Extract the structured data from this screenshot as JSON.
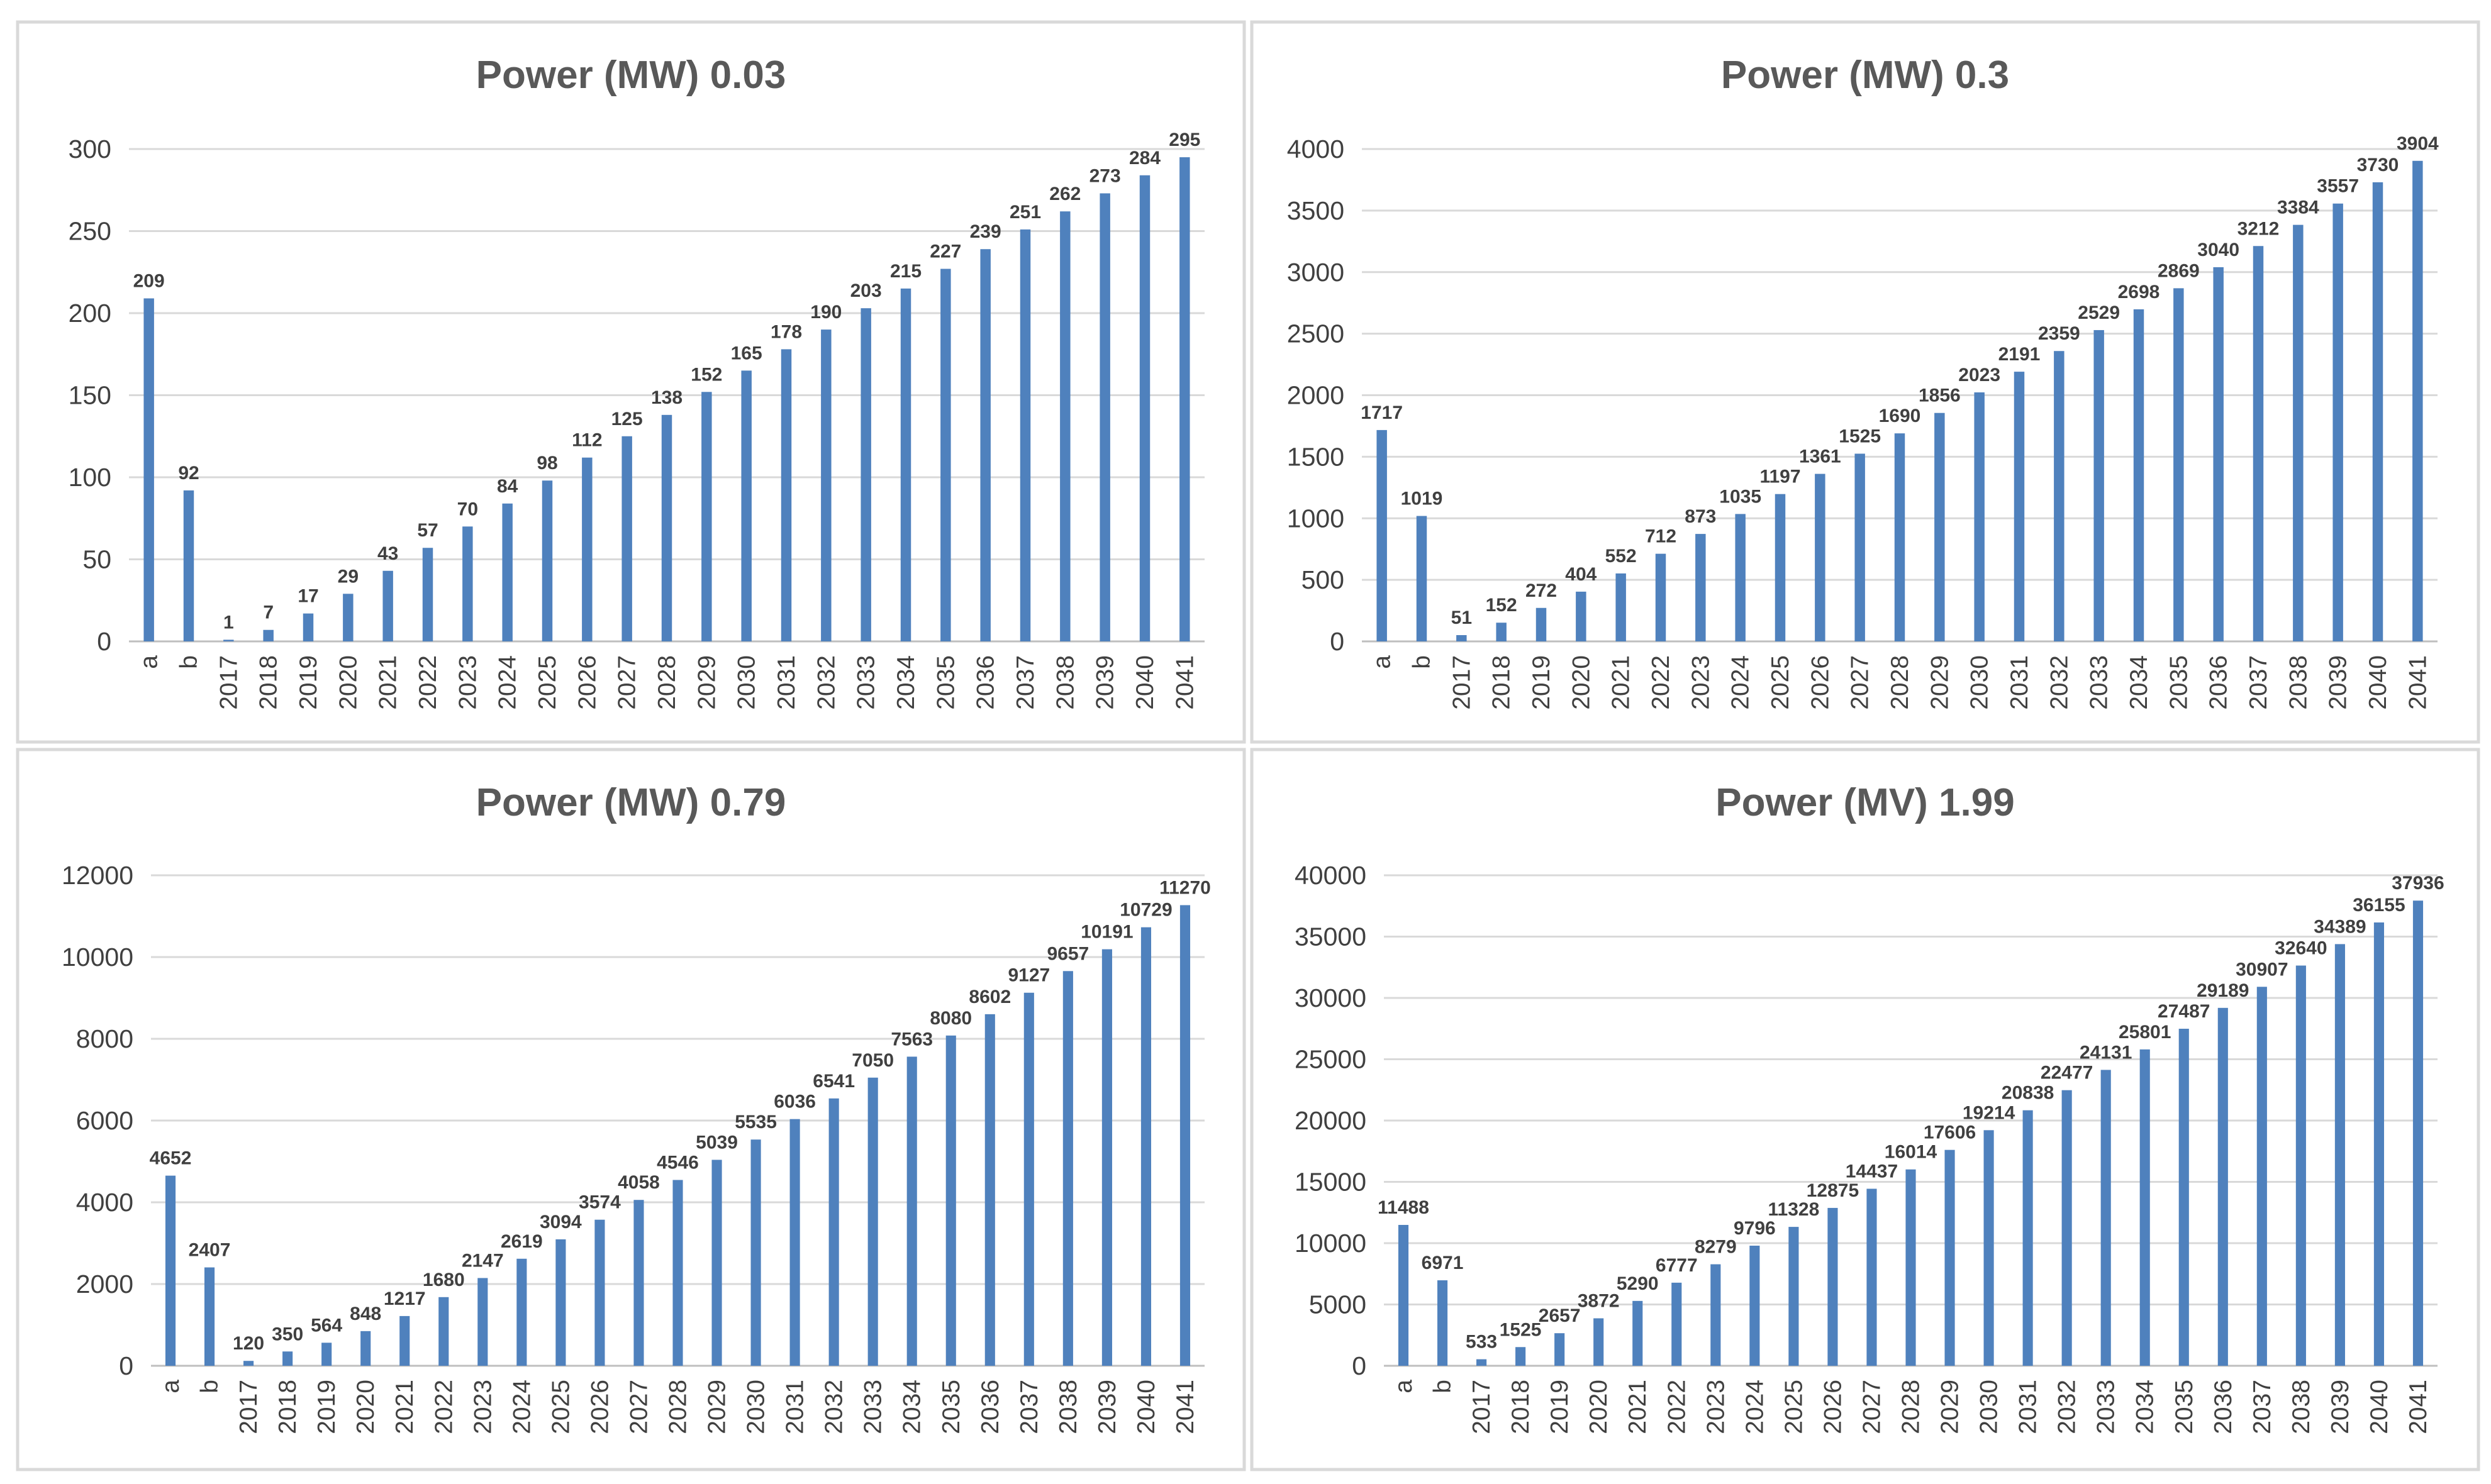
{
  "chart_data": [
    {
      "type": "bar",
      "title": "Power (MW) 0.03",
      "categories": [
        "a",
        "b",
        "2017",
        "2018",
        "2019",
        "2020",
        "2021",
        "2022",
        "2023",
        "2024",
        "2025",
        "2026",
        "2027",
        "2028",
        "2029",
        "2030",
        "2031",
        "2032",
        "2033",
        "2034",
        "2035",
        "2036",
        "2037",
        "2038",
        "2039",
        "2040",
        "2041"
      ],
      "values": [
        209,
        92,
        1,
        7,
        17,
        29,
        43,
        57,
        70,
        84,
        98,
        112,
        125,
        138,
        152,
        165,
        178,
        190,
        203,
        215,
        227,
        239,
        251,
        262,
        273,
        284,
        295
      ],
      "ylim": [
        0,
        300
      ],
      "yticks": [
        0,
        50,
        100,
        150,
        200,
        250,
        300
      ],
      "grid": true,
      "color": "#4f81bd"
    },
    {
      "type": "bar",
      "title": "Power (MW) 0.3",
      "categories": [
        "a",
        "b",
        "2017",
        "2018",
        "2019",
        "2020",
        "2021",
        "2022",
        "2023",
        "2024",
        "2025",
        "2026",
        "2027",
        "2028",
        "2029",
        "2030",
        "2031",
        "2032",
        "2033",
        "2034",
        "2035",
        "2036",
        "2037",
        "2038",
        "2039",
        "2040",
        "2041"
      ],
      "values": [
        1717,
        1019,
        51,
        152,
        272,
        404,
        552,
        712,
        873,
        1035,
        1197,
        1361,
        1525,
        1690,
        1856,
        2023,
        2191,
        2359,
        2529,
        2698,
        2869,
        3040,
        3212,
        3384,
        3557,
        3730,
        3904
      ],
      "ylim": [
        0,
        4000
      ],
      "yticks": [
        0,
        500,
        1000,
        1500,
        2000,
        2500,
        3000,
        3500,
        4000
      ],
      "grid": true,
      "color": "#4f81bd"
    },
    {
      "type": "bar",
      "title": "Power (MW) 0.79",
      "categories": [
        "a",
        "b",
        "2017",
        "2018",
        "2019",
        "2020",
        "2021",
        "2022",
        "2023",
        "2024",
        "2025",
        "2026",
        "2027",
        "2028",
        "2029",
        "2030",
        "2031",
        "2032",
        "2033",
        "2034",
        "2035",
        "2036",
        "2037",
        "2038",
        "2039",
        "2040",
        "2041"
      ],
      "values": [
        4652,
        2407,
        120,
        350,
        564,
        848,
        1217,
        1680,
        2147,
        2619,
        3094,
        3574,
        4058,
        4546,
        5039,
        5535,
        6036,
        6541,
        7050,
        7563,
        8080,
        8602,
        9127,
        9657,
        10191,
        10729,
        11270
      ],
      "ylim": [
        0,
        12000
      ],
      "yticks": [
        0,
        2000,
        4000,
        6000,
        8000,
        10000,
        12000
      ],
      "grid": true,
      "color": "#4f81bd"
    },
    {
      "type": "bar",
      "title": "Power (MV) 1.99",
      "categories": [
        "a",
        "b",
        "2017",
        "2018",
        "2019",
        "2020",
        "2021",
        "2022",
        "2023",
        "2024",
        "2025",
        "2026",
        "2027",
        "2028",
        "2029",
        "2030",
        "2031",
        "2032",
        "2033",
        "2034",
        "2035",
        "2036",
        "2037",
        "2038",
        "2039",
        "2040",
        "2041"
      ],
      "values": [
        11488,
        6971,
        533,
        1525,
        2657,
        3872,
        5290,
        6777,
        8279,
        9796,
        11328,
        12875,
        14437,
        16014,
        17606,
        19214,
        20838,
        22477,
        24131,
        25801,
        27487,
        29189,
        30907,
        32640,
        34389,
        36155,
        37936
      ],
      "ylim": [
        0,
        40000
      ],
      "yticks": [
        0,
        5000,
        10000,
        15000,
        20000,
        25000,
        30000,
        35000,
        40000
      ],
      "grid": true,
      "color": "#4f81bd"
    }
  ]
}
